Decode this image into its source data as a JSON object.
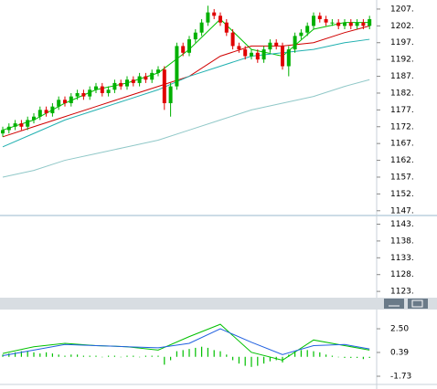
{
  "chart_data": [
    {
      "type": "candlestick",
      "up_color": "#00b000",
      "down_color": "#e00000",
      "open": [
        1170,
        1171,
        1172,
        1173,
        1172,
        1174,
        1175,
        1177,
        1176,
        1178,
        1180,
        1179,
        1181,
        1182,
        1181,
        1183,
        1184,
        1182,
        1183,
        1185,
        1184,
        1186,
        1185,
        1187,
        1186,
        1188,
        1189,
        1179,
        1184,
        1196,
        1194,
        1198,
        1200,
        1203,
        1206,
        1205,
        1203,
        1200,
        1196,
        1195,
        1193,
        1194,
        1192,
        1195,
        1197,
        1196,
        1190,
        1195,
        1199,
        1200,
        1202,
        1205,
        1204,
        1203,
        1203,
        1202,
        1203,
        1202,
        1203,
        1202
      ],
      "high": [
        1172,
        1173,
        1174,
        1174,
        1175,
        1176,
        1178,
        1178,
        1179,
        1181,
        1181,
        1182,
        1183,
        1183,
        1184,
        1185,
        1185,
        1184,
        1186,
        1186,
        1187,
        1187,
        1188,
        1188,
        1189,
        1190,
        1190,
        1185,
        1197,
        1197,
        1199,
        1201,
        1204,
        1208,
        1207,
        1206,
        1204,
        1201,
        1197,
        1196,
        1195,
        1195,
        1196,
        1198,
        1198,
        1197,
        1196,
        1200,
        1201,
        1203,
        1206,
        1206,
        1205,
        1204,
        1204,
        1204,
        1204,
        1204,
        1204,
        1205
      ],
      "low": [
        1169,
        1170,
        1171,
        1171,
        1171,
        1173,
        1174,
        1175,
        1175,
        1177,
        1178,
        1178,
        1180,
        1180,
        1180,
        1182,
        1181,
        1181,
        1182,
        1183,
        1183,
        1184,
        1184,
        1185,
        1185,
        1187,
        1177,
        1175,
        1183,
        1193,
        1193,
        1197,
        1199,
        1202,
        1204,
        1202,
        1199,
        1195,
        1194,
        1192,
        1192,
        1191,
        1191,
        1194,
        1195,
        1189,
        1187,
        1194,
        1198,
        1199,
        1201,
        1203,
        1202,
        1202,
        1201,
        1201,
        1201,
        1201,
        1201,
        1201
      ],
      "close": [
        1171,
        1172,
        1173,
        1172,
        1174,
        1175,
        1177,
        1176,
        1178,
        1180,
        1179,
        1181,
        1182,
        1181,
        1183,
        1184,
        1182,
        1183,
        1185,
        1184,
        1186,
        1185,
        1187,
        1186,
        1188,
        1189,
        1179,
        1184,
        1196,
        1194,
        1198,
        1200,
        1203,
        1206,
        1205,
        1203,
        1200,
        1196,
        1195,
        1193,
        1194,
        1192,
        1195,
        1197,
        1196,
        1190,
        1195,
        1199,
        1200,
        1202,
        1205,
        1204,
        1203,
        1203,
        1202,
        1203,
        1202,
        1203,
        1202,
        1204
      ],
      "overlays": [
        {
          "color": "#00c000",
          "x": [
            0,
            5,
            10,
            15,
            20,
            25,
            30,
            35,
            40,
            45,
            50,
            55,
            59
          ],
          "values": [
            1171,
            1174,
            1179,
            1183,
            1185,
            1188,
            1195,
            1204,
            1195,
            1193,
            1201,
            1203,
            1203
          ]
        },
        {
          "color": "#d00000",
          "x": [
            0,
            5,
            10,
            15,
            20,
            25,
            30,
            35,
            40,
            45,
            50,
            55,
            59
          ],
          "values": [
            1169,
            1172,
            1175,
            1178,
            1181,
            1184,
            1187,
            1193,
            1196,
            1196,
            1197,
            1200,
            1202
          ]
        },
        {
          "color": "#20b0b0",
          "x": [
            0,
            5,
            10,
            15,
            20,
            25,
            30,
            35,
            40,
            45,
            50,
            55,
            59
          ],
          "values": [
            1166,
            1170,
            1174,
            1177,
            1180,
            1183,
            1187,
            1190,
            1193,
            1194,
            1195,
            1197,
            1198
          ]
        },
        {
          "color": "#90c8c8",
          "x": [
            0,
            5,
            10,
            15,
            20,
            25,
            30,
            35,
            40,
            45,
            50,
            55,
            59
          ],
          "values": [
            1157,
            1159,
            1162,
            1164,
            1166,
            1168,
            1171,
            1174,
            1177,
            1179,
            1181,
            1184,
            1186
          ]
        }
      ],
      "ylim": [
        1121.4,
        1209.7
      ],
      "yticks": [
        {
          "value": 1207,
          "label": "1207."
        },
        {
          "value": 1202,
          "label": "1202."
        },
        {
          "value": 1197,
          "label": "1197."
        },
        {
          "value": 1192,
          "label": "1192."
        },
        {
          "value": 1187,
          "label": "1187."
        },
        {
          "value": 1182,
          "label": "1182."
        },
        {
          "value": 1177,
          "label": "1177."
        },
        {
          "value": 1172,
          "label": "1172."
        },
        {
          "value": 1167,
          "label": "1167."
        },
        {
          "value": 1162,
          "label": "1162."
        },
        {
          "value": 1157,
          "label": "1157."
        },
        {
          "value": 1152,
          "label": "1152."
        },
        {
          "value": 1147,
          "label": "1147."
        },
        {
          "value": 1143,
          "label": "1143."
        },
        {
          "value": 1138,
          "label": "1138."
        },
        {
          "value": 1133,
          "label": "1133."
        },
        {
          "value": 1128,
          "label": "1128."
        },
        {
          "value": 1123,
          "label": "1123."
        }
      ]
    },
    {
      "type": "oscillator",
      "color": "#00c000",
      "values": [
        0.2,
        0.3,
        0.4,
        0.5,
        0.5,
        0.4,
        0.3,
        0.4,
        0.3,
        0.2,
        0.1,
        0.2,
        0.2,
        0.1,
        0.1,
        0.1,
        0.0,
        0.1,
        0.1,
        0.0,
        0.1,
        0.1,
        0.0,
        0.1,
        0.1,
        0.1,
        -0.7,
        -0.3,
        0.5,
        0.6,
        0.7,
        0.8,
        0.9,
        0.8,
        0.6,
        0.5,
        0.2,
        -0.3,
        -0.6,
        -0.8,
        -0.9,
        -0.8,
        -0.6,
        -0.4,
        -0.3,
        -0.5,
        0.2,
        0.4,
        0.6,
        0.6,
        0.5,
        0.4,
        0.2,
        0.1,
        0.0,
        -0.1,
        -0.1,
        -0.1,
        -0.2,
        -0.1
      ],
      "lines": [
        {
          "color": "#00c000",
          "x": [
            0,
            5,
            10,
            15,
            20,
            25,
            30,
            35,
            40,
            45,
            50,
            55,
            59
          ],
          "values": [
            0.3,
            0.9,
            1.2,
            1.0,
            0.9,
            0.6,
            1.8,
            2.9,
            0.4,
            -0.3,
            1.5,
            1.0,
            0.6
          ]
        },
        {
          "color": "#2060e0",
          "x": [
            0,
            5,
            10,
            15,
            20,
            25,
            30,
            35,
            40,
            45,
            50,
            55,
            59
          ],
          "values": [
            0.1,
            0.6,
            1.1,
            1.0,
            0.9,
            0.8,
            1.2,
            2.5,
            1.3,
            0.2,
            1.0,
            1.1,
            0.7
          ]
        }
      ],
      "ylim": [
        -2.46,
        4.13
      ],
      "yticks": [
        {
          "value": 2.5,
          "label": "2.50"
        },
        0.39,
        -1.73
      ]
    }
  ]
}
